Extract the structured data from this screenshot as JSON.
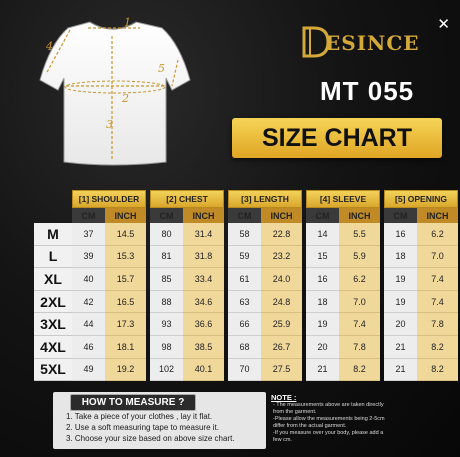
{
  "brand": {
    "name": "ESINCE",
    "logo_letter": "D"
  },
  "model": "MT 055",
  "title": "SIZE CHART",
  "close_icon": "close-icon",
  "diagram_labels": [
    "1",
    "2",
    "3",
    "4",
    "5"
  ],
  "columns": [
    {
      "label": "[1] SHOULDER"
    },
    {
      "label": "[2] CHEST"
    },
    {
      "label": "[3] LENGTH"
    },
    {
      "label": "[4] SLEEVE"
    },
    {
      "label": "[5] OPENING"
    }
  ],
  "unit_cm": "CM",
  "unit_inch": "INCH",
  "rows": [
    {
      "size": "M",
      "vals": [
        "37",
        "14.5",
        "80",
        "31.4",
        "58",
        "22.8",
        "14",
        "5.5",
        "16",
        "6.2"
      ]
    },
    {
      "size": "L",
      "vals": [
        "39",
        "15.3",
        "81",
        "31.8",
        "59",
        "23.2",
        "15",
        "5.9",
        "18",
        "7.0"
      ]
    },
    {
      "size": "XL",
      "vals": [
        "40",
        "15.7",
        "85",
        "33.4",
        "61",
        "24.0",
        "16",
        "6.2",
        "19",
        "7.4"
      ]
    },
    {
      "size": "2XL",
      "vals": [
        "42",
        "16.5",
        "88",
        "34.6",
        "63",
        "24.8",
        "18",
        "7.0",
        "19",
        "7.4"
      ]
    },
    {
      "size": "3XL",
      "vals": [
        "44",
        "17.3",
        "93",
        "36.6",
        "66",
        "25.9",
        "19",
        "7.4",
        "20",
        "7.8"
      ]
    },
    {
      "size": "4XL",
      "vals": [
        "46",
        "18.1",
        "98",
        "38.5",
        "68",
        "26.7",
        "20",
        "7.8",
        "21",
        "8.2"
      ]
    },
    {
      "size": "5XL",
      "vals": [
        "49",
        "19.2",
        "102",
        "40.1",
        "70",
        "27.5",
        "21",
        "8.2",
        "21",
        "8.2"
      ]
    }
  ],
  "howto": {
    "title": "HOW TO MEASURE ?",
    "steps": [
      "1. Take a piece of your clothes , lay it flat.",
      "2. Use a soft measuring tape to measure it.",
      "3. Choose your size based on above size chart."
    ]
  },
  "note": {
    "title": "NOTE :",
    "lines": [
      "- The measurements above are taken directly",
      "  from the garment.",
      "-Please allow the measurements being 2-5cm",
      "  differ from the actual garment.",
      "-If you measure over your body, please add a",
      "  few cm."
    ]
  },
  "colors": {
    "gold": "#e0a524",
    "gold_light": "#f5d456",
    "inch_fill": "#f0d79a",
    "dark": "#141414"
  }
}
